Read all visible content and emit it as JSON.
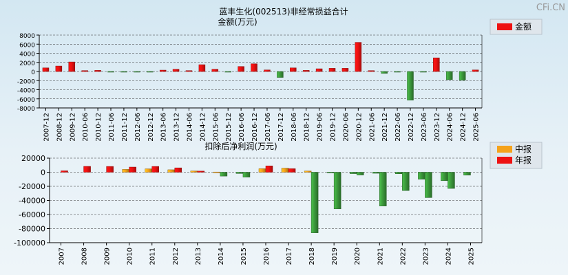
{
  "watermark": "CFi.CN",
  "colors": {
    "red": "#ee1111",
    "green": "#3c9a3c",
    "orange": "#f5a21a",
    "grid": "#333333",
    "axis": "#000000",
    "text": "#000000"
  },
  "chart_data": [
    {
      "type": "bar",
      "title": "蓝丰生化(002513)非经常损益合计",
      "subtitle": "金额(万元)",
      "legend": [
        {
          "name": "金额",
          "color": "#ee1111"
        }
      ],
      "legend_position": "top-right",
      "grid": true,
      "ylim": [
        -8000,
        8000
      ],
      "yticks": [
        8000,
        6000,
        4000,
        2000,
        0,
        -2000,
        -4000,
        -6000,
        -8000
      ],
      "categories": [
        "2007-12",
        "2008-12",
        "2009-12",
        "2010-06",
        "2010-12",
        "2011-06",
        "2011-12",
        "2012-06",
        "2012-12",
        "2013-06",
        "2013-12",
        "2014-06",
        "2014-12",
        "2015-06",
        "2015-12",
        "2016-06",
        "2016-12",
        "2017-06",
        "2017-12",
        "2018-06",
        "2018-12",
        "2019-06",
        "2019-12",
        "2020-06",
        "2020-12",
        "2021-06",
        "2021-12",
        "2022-06",
        "2022-12",
        "2023-06",
        "2023-12",
        "2024-06",
        "2024-12",
        "2025-06"
      ],
      "values": [
        800,
        1200,
        2100,
        200,
        250,
        -100,
        -100,
        -150,
        -100,
        300,
        500,
        200,
        1500,
        500,
        -50,
        1100,
        1700,
        350,
        -1300,
        800,
        250,
        600,
        700,
        700,
        6400,
        200,
        -400,
        -100,
        -6300,
        -100,
        3000,
        -1800,
        -1900,
        350
      ]
    },
    {
      "type": "bar",
      "title": "扣除后净利润(万元)",
      "legend": [
        {
          "name": "中报",
          "color": "#f5a21a"
        },
        {
          "name": "年报",
          "color": "#ee1111"
        }
      ],
      "legend_position": "top-right",
      "grid": true,
      "ylim": [
        -100000,
        20000
      ],
      "yticks": [
        20000,
        0,
        -20000,
        -40000,
        -60000,
        -80000,
        -100000
      ],
      "categories": [
        "2007",
        "2008",
        "2009",
        "2010",
        "2011",
        "2012",
        "2013",
        "2014",
        "2015",
        "2016",
        "2017",
        "2018",
        "2019",
        "2020",
        "2021",
        "2022",
        "2023",
        "2024",
        "2025"
      ],
      "series": [
        {
          "name": "中报",
          "values": [
            null,
            null,
            null,
            4000,
            4800,
            3500,
            1800,
            300,
            -1800,
            5000,
            5800,
            1700,
            -800,
            -2000,
            -1500,
            -2200,
            -10000,
            -12000,
            -4200
          ]
        },
        {
          "name": "年报",
          "values": [
            2000,
            8300,
            8200,
            7300,
            8200,
            6200,
            1600,
            -5500,
            -7000,
            9000,
            5000,
            -86000,
            -52000,
            -4000,
            -48000,
            -26000,
            -36000,
            -23000,
            null
          ]
        }
      ]
    }
  ]
}
